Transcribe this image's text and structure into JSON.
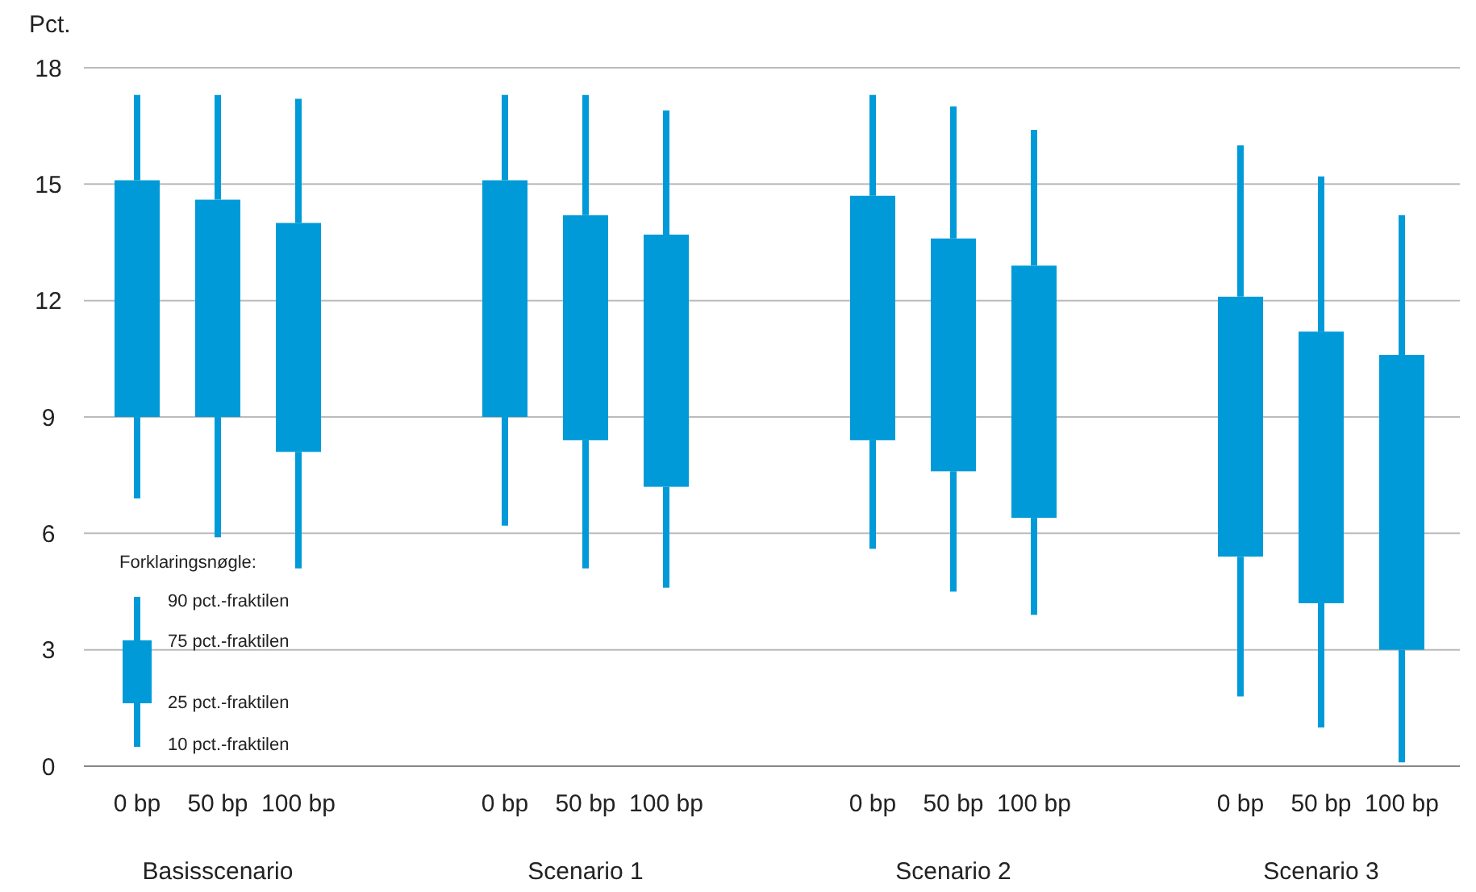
{
  "chart_data": {
    "type": "box",
    "ylabel": "Pct.",
    "categories": [
      "0 bp",
      "50 bp",
      "100 bp",
      "0 bp",
      "50 bp",
      "100 bp",
      "0 bp",
      "50 bp",
      "100 bp",
      "0 bp",
      "50 bp",
      "100 bp"
    ],
    "color": "#009ad8",
    "ylim": [
      0,
      18
    ],
    "yticks": [
      0,
      3,
      6,
      9,
      12,
      15,
      18
    ],
    "grid": "y",
    "boxes": [
      {
        "low": 6.9,
        "q1": 9.0,
        "q3": 15.1,
        "high": 17.3
      },
      {
        "low": 5.9,
        "q1": 9.0,
        "q3": 14.6,
        "high": 17.3
      },
      {
        "low": 5.1,
        "q1": 8.1,
        "q3": 14.0,
        "high": 17.2
      },
      {
        "low": 6.2,
        "q1": 9.0,
        "q3": 15.1,
        "high": 17.3
      },
      {
        "low": 5.1,
        "q1": 8.4,
        "q3": 14.2,
        "high": 17.3
      },
      {
        "low": 4.6,
        "q1": 7.2,
        "q3": 13.7,
        "high": 16.9
      },
      {
        "low": 5.6,
        "q1": 8.4,
        "q3": 14.7,
        "high": 17.3
      },
      {
        "low": 4.5,
        "q1": 7.6,
        "q3": 13.6,
        "high": 17.0
      },
      {
        "low": 3.9,
        "q1": 6.4,
        "q3": 12.9,
        "high": 16.4
      },
      {
        "low": 1.8,
        "q1": 5.4,
        "q3": 12.1,
        "high": 16.0
      },
      {
        "low": 1.0,
        "q1": 4.2,
        "q3": 11.2,
        "high": 15.2
      },
      {
        "low": 0.1,
        "q1": 3.0,
        "q3": 10.6,
        "high": 14.2
      }
    ],
    "annotations": [
      "Basisscenario",
      "Scenario 1",
      "Scenario 2",
      "Scenario 3",
      "Forklaringsnøgle:",
      "90 pct.-fraktilen",
      "75 pct.-fraktilen",
      "25 pct.-fraktilen",
      "10 pct.-fraktilen"
    ]
  }
}
